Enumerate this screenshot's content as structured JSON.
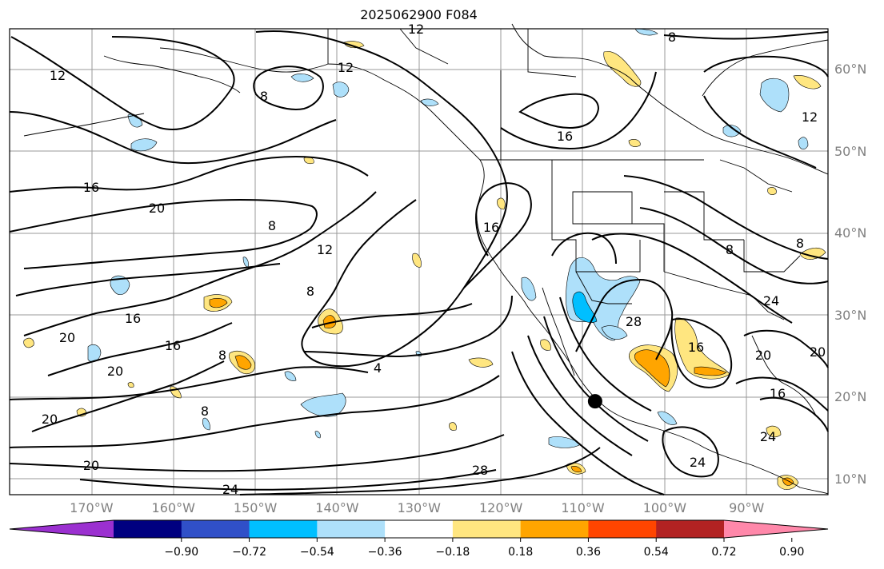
{
  "title": "2025062900 F084",
  "map": {
    "lat_labels": [
      {
        "deg": 60,
        "label": "60°N"
      },
      {
        "deg": 50,
        "label": "50°N"
      },
      {
        "deg": 40,
        "label": "40°N"
      },
      {
        "deg": 30,
        "label": "30°N"
      },
      {
        "deg": 20,
        "label": "20°N"
      },
      {
        "deg": 10,
        "label": "10°N"
      }
    ],
    "lon_labels": [
      {
        "deg": -170,
        "label": "170°W"
      },
      {
        "deg": -160,
        "label": "160°W"
      },
      {
        "deg": -150,
        "label": "150°W"
      },
      {
        "deg": -140,
        "label": "140°W"
      },
      {
        "deg": -130,
        "label": "130°W"
      },
      {
        "deg": -120,
        "label": "120°W"
      },
      {
        "deg": -110,
        "label": "110°W"
      },
      {
        "deg": -100,
        "label": "100°W"
      },
      {
        "deg": -90,
        "label": "90°W"
      }
    ],
    "contour_labels": [
      "4",
      "8",
      "12",
      "16",
      "20",
      "24",
      "28"
    ],
    "storm_marker": {
      "lon": -108.5,
      "lat": 19.5
    }
  },
  "colorbar": {
    "colors": [
      "#9b30d0",
      "#000080",
      "#3050c8",
      "#00bfff",
      "#aee0fa",
      "#ffffff",
      "#ffe680",
      "#ffa500",
      "#ff4500",
      "#b22222",
      "#ff88aa"
    ],
    "tick_labels": [
      "−0.90",
      "−0.72",
      "−0.54",
      "−0.36",
      "−0.18",
      "0.18",
      "0.36",
      "0.54",
      "0.72",
      "0.90"
    ]
  }
}
